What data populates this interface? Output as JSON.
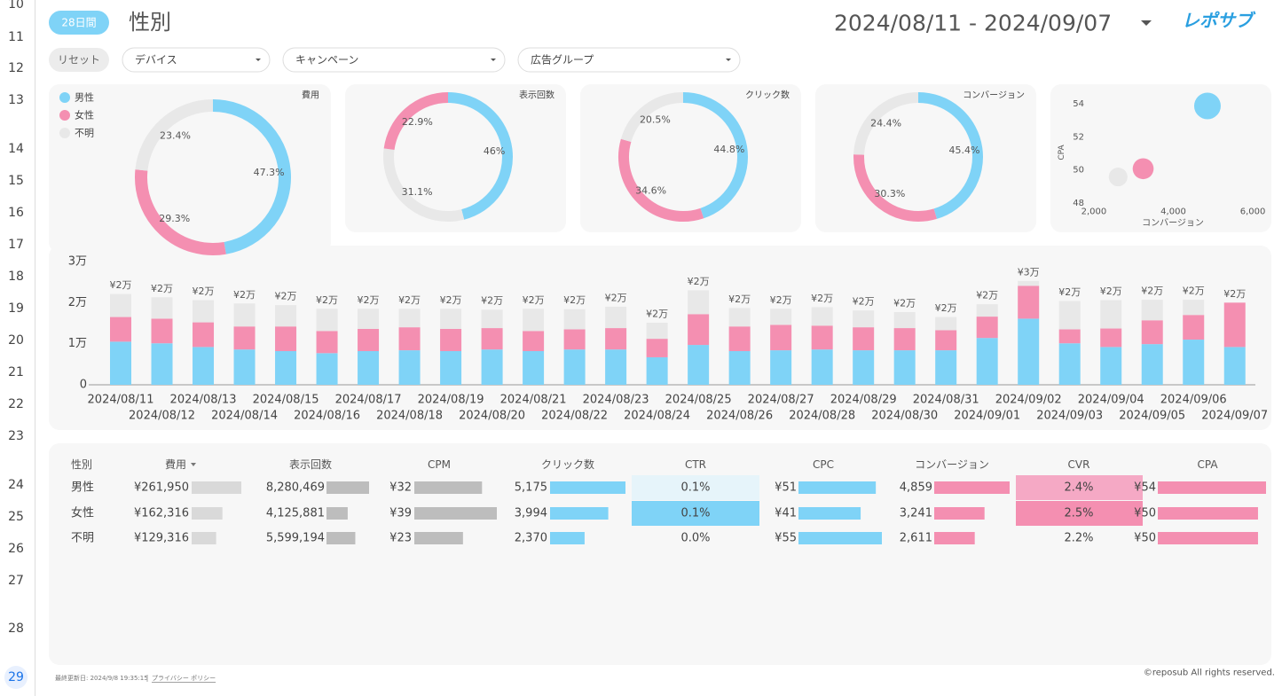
{
  "row_numbers": [
    10,
    11,
    12,
    13,
    14,
    15,
    16,
    17,
    18,
    19,
    20,
    21,
    22,
    23,
    24,
    25,
    26,
    27,
    28,
    29
  ],
  "header": {
    "period": "28日間",
    "title": "性別",
    "date_range": "2024/08/11 - 2024/09/07",
    "logo": "レポサブ"
  },
  "filters": {
    "reset": "リセット",
    "dropdowns": [
      "デバイス",
      "キャンペーン",
      "広告グループ"
    ]
  },
  "chart_data": [
    {
      "type": "pie",
      "title": "費用",
      "categories": [
        "男性",
        "女性",
        "不明"
      ],
      "values": [
        47.3,
        29.3,
        23.4
      ],
      "value_labels": [
        "47.3%",
        "29.3%",
        "23.4%"
      ],
      "colors": [
        "#7fd3f7",
        "#f48fb1",
        "#e8e8e8"
      ],
      "legend": "top-left"
    },
    {
      "type": "pie",
      "title": "表示回数",
      "values": [
        46,
        31.1,
        22.9
      ],
      "value_labels": [
        "46%",
        "31.1%",
        "22.9%"
      ],
      "colors": [
        "#7fd3f7",
        "#e8e8e8",
        "#f48fb1"
      ]
    },
    {
      "type": "pie",
      "title": "クリック数",
      "values": [
        44.8,
        34.6,
        20.5
      ],
      "value_labels": [
        "44.8%",
        "34.6%",
        "20.5%"
      ],
      "colors": [
        "#7fd3f7",
        "#f48fb1",
        "#e8e8e8"
      ]
    },
    {
      "type": "pie",
      "title": "コンバージョン",
      "values": [
        45.4,
        30.3,
        24.4
      ],
      "value_labels": [
        "45.4%",
        "30.3%",
        "24.4%"
      ],
      "colors": [
        "#7fd3f7",
        "#f48fb1",
        "#e8e8e8"
      ]
    },
    {
      "type": "scatter",
      "x_label": "コンバージョン",
      "y_label": "CPA",
      "x": [
        4859,
        3241,
        2611
      ],
      "values": [
        53.9,
        50.1,
        49.6
      ],
      "size": [
        261950,
        162316,
        129316
      ],
      "colors": [
        "#7fd3f7",
        "#f48fb1",
        "#e8e8e8"
      ],
      "xlim": [
        1600,
        6400
      ],
      "xticks": [
        {
          "value": 2000,
          "label": "2,000"
        },
        {
          "value": 4000,
          "label": "4,000"
        },
        {
          "value": 6000,
          "label": "6,000"
        }
      ],
      "ylim": [
        47.7,
        54.3
      ],
      "yticks": [
        48,
        50,
        52,
        54
      ]
    },
    {
      "type": "bar",
      "stacked": true,
      "categories": [
        "2024/08/11",
        "2024/08/12",
        "2024/08/13",
        "2024/08/14",
        "2024/08/15",
        "2024/08/16",
        "2024/08/17",
        "2024/08/18",
        "2024/08/19",
        "2024/08/20",
        "2024/08/21",
        "2024/08/22",
        "2024/08/23",
        "2024/08/24",
        "2024/08/25",
        "2024/08/26",
        "2024/08/27",
        "2024/08/28",
        "2024/08/29",
        "2024/08/30",
        "2024/08/31",
        "2024/09/01",
        "2024/09/02",
        "2024/09/03",
        "2024/09/04",
        "2024/09/05",
        "2024/09/06",
        "2024/09/07"
      ],
      "series": [
        {
          "color": "#7fd3f7",
          "values": [
            10500,
            10100,
            9200,
            8600,
            8200,
            7700,
            8200,
            8400,
            8200,
            8600,
            8200,
            8600,
            8600,
            6700,
            9700,
            8200,
            8400,
            8600,
            8400,
            8400,
            8400,
            11400,
            16100,
            10100,
            9200,
            9900,
            11000,
            9200
          ]
        },
        {
          "color": "#f48fb1",
          "values": [
            6000,
            6000,
            6000,
            5600,
            6000,
            5400,
            5400,
            5600,
            5400,
            5200,
            4900,
            4900,
            5200,
            4500,
            7500,
            6000,
            6200,
            5800,
            5600,
            5400,
            4900,
            5200,
            8000,
            3400,
            4500,
            5800,
            6000,
            10800
          ]
        },
        {
          "color": "#e8e8e8",
          "values": [
            5600,
            5200,
            5400,
            5600,
            5200,
            5400,
            4900,
            4500,
            4900,
            4500,
            5400,
            4900,
            5200,
            3900,
            5800,
            4500,
            3900,
            4500,
            4100,
            3900,
            3200,
            3000,
            1200,
            6900,
            6900,
            5000,
            3700,
            0
          ]
        }
      ],
      "total_labels": [
        "¥2万",
        "¥2万",
        "¥2万",
        "¥2万",
        "¥2万",
        "¥2万",
        "¥2万",
        "¥2万",
        "¥2万",
        "¥2万",
        "¥2万",
        "¥2万",
        "¥2万",
        "¥2万",
        "¥2万",
        "¥2万",
        "¥2万",
        "¥2万",
        "¥2万",
        "¥2万",
        "¥2万",
        "¥2万",
        "¥3万",
        "¥2万",
        "¥2万",
        "¥2万",
        "¥2万",
        "¥2万"
      ],
      "ylim": [
        0,
        30000
      ],
      "yticks": [
        0,
        {
          "value": 10000,
          "label": "1万"
        },
        {
          "value": 20000,
          "label": "2万"
        },
        {
          "value": 30000,
          "label": "3万"
        }
      ]
    }
  ],
  "table": {
    "columns": [
      "性別",
      "費用",
      "表示回数",
      "CPM",
      "クリック数",
      "CTR",
      "CPC",
      "コンバージョン",
      "CVR",
      "CPA"
    ],
    "rows": [
      [
        "男性",
        {
          "value": 261950,
          "label": "¥261,950"
        },
        {
          "value": 8280469,
          "label": "8,280,469"
        },
        {
          "value": 32,
          "label": "¥32"
        },
        {
          "value": 5175,
          "label": "5,175"
        },
        {
          "value": 0.1,
          "label": "0.1%"
        },
        {
          "value": 51,
          "label": "¥51"
        },
        {
          "value": 4859,
          "label": "4,859"
        },
        {
          "value": 2.4,
          "label": "2.4%"
        },
        {
          "value": 54,
          "label": "¥54"
        }
      ],
      [
        "女性",
        {
          "value": 162316,
          "label": "¥162,316"
        },
        {
          "value": 4125881,
          "label": "4,125,881"
        },
        {
          "value": 39,
          "label": "¥39"
        },
        {
          "value": 3994,
          "label": "3,994"
        },
        {
          "value": 0.1,
          "label": "0.1%"
        },
        {
          "value": 41,
          "label": "¥41"
        },
        {
          "value": 3241,
          "label": "3,241"
        },
        {
          "value": 2.5,
          "label": "2.5%"
        },
        {
          "value": 50,
          "label": "¥50"
        }
      ],
      [
        "不明",
        {
          "value": 129316,
          "label": "¥129,316"
        },
        {
          "value": 5599194,
          "label": "5,599,194"
        },
        {
          "value": 23,
          "label": "¥23"
        },
        {
          "value": 2370,
          "label": "2,370"
        },
        {
          "value": 0.0,
          "label": "0.0%"
        },
        {
          "value": 55,
          "label": "¥55"
        },
        {
          "value": 2611,
          "label": "2,611"
        },
        {
          "value": 2.2,
          "label": "2.2%"
        },
        {
          "value": 50,
          "label": "¥50"
        }
      ]
    ]
  },
  "footer": {
    "updated": "最終更新日: 2024/9/8 19:35:15",
    "privacy": "プライバシー ポリシー",
    "copyright": "©reposub All rights reserved."
  }
}
